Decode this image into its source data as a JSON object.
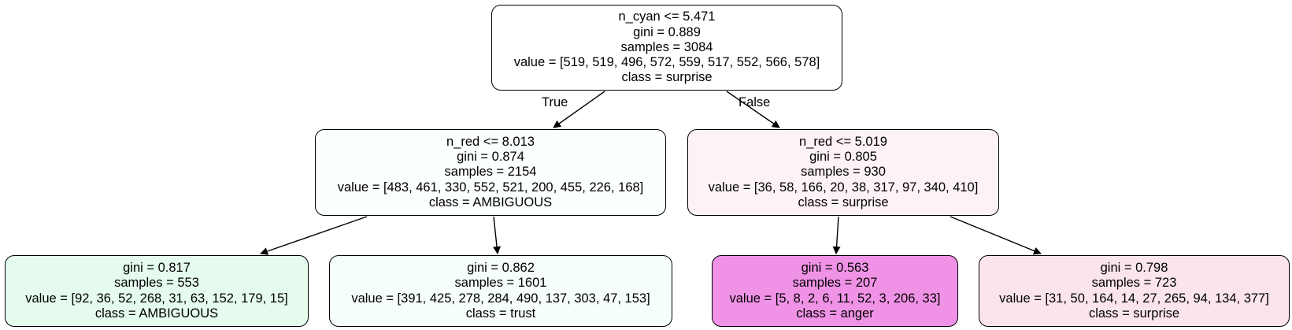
{
  "colors": {
    "background": "#ffffff",
    "stroke": "#000000",
    "node_root": "#ffffff",
    "node_left": "#fbfffd",
    "node_right": "#fdf2f6",
    "node_left_left": "#e5fbee",
    "node_left_right": "#f5fefc",
    "node_right_left": "#f093e6",
    "node_right_right": "#fbe5ea"
  },
  "edges": {
    "true_label": "True",
    "false_label": "False"
  },
  "tree": {
    "root": {
      "fill": "#ffffff",
      "lines": [
        "n_cyan <= 5.471",
        "gini = 0.889",
        "samples = 3084",
        "value = [519, 519, 496, 572, 559, 517, 552, 566, 578]",
        "class = surprise"
      ]
    },
    "left": {
      "fill": "#fbfffd",
      "lines": [
        "n_red <= 8.013",
        "gini = 0.874",
        "samples = 2154",
        "value = [483, 461, 330, 552, 521, 200, 455, 226, 168]",
        "class = AMBIGUOUS"
      ]
    },
    "right": {
      "fill": "#fdf2f6",
      "lines": [
        "n_red <= 5.019",
        "gini = 0.805",
        "samples = 930",
        "value = [36, 58, 166, 20, 38, 317, 97, 340, 410]",
        "class = surprise"
      ]
    },
    "left_left": {
      "fill": "#e5fbee",
      "lines": [
        "gini = 0.817",
        "samples = 553",
        "value = [92, 36, 52, 268, 31, 63, 152, 179, 15]",
        "class = AMBIGUOUS"
      ]
    },
    "left_right": {
      "fill": "#f5fefc",
      "lines": [
        "gini = 0.862",
        "samples = 1601",
        "value = [391, 425, 278, 284, 490, 137, 303, 47, 153]",
        "class = trust"
      ]
    },
    "right_left": {
      "fill": "#f093e6",
      "lines": [
        "gini = 0.563",
        "samples = 207",
        "value = [5, 8, 2, 6, 11, 52, 3, 206, 33]",
        "class = anger"
      ]
    },
    "right_right": {
      "fill": "#fbe5ea",
      "lines": [
        "gini = 0.798",
        "samples = 723",
        "value = [31, 50, 164, 14, 27, 265, 94, 134, 377]",
        "class = surprise"
      ]
    }
  }
}
